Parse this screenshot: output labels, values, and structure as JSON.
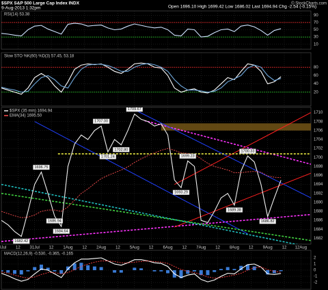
{
  "header": {
    "title": "$SPX S&P 500 Large Cap Index INDX",
    "date": "9-Aug-2013 1:32pm",
    "quote": "Open 1696.10  High 1699.42  Low 1686.02  Last 1694.94  Chg -2.54 (-0.15%)",
    "credit": "© StockCharts.com"
  },
  "chart_data": [
    {
      "type": "line",
      "title": "RSI(14) 53.38",
      "x": [
        0,
        0.2,
        0.4,
        0.6,
        0.8,
        1,
        1.2,
        1.4,
        1.6,
        1.8,
        2,
        2.2,
        2.4,
        2.6,
        2.8,
        3,
        3.2,
        3.4,
        3.6,
        3.8,
        4,
        4.2,
        4.4,
        4.6,
        4.8,
        5,
        5.2,
        5.4,
        5.6,
        5.8,
        6,
        6.2,
        6.4,
        6.6,
        6.8,
        7,
        7.2,
        7.4,
        7.6,
        7.8,
        8,
        8.2,
        8.4
      ],
      "xlim": [
        0,
        9.3
      ],
      "ylim": [
        0,
        100
      ],
      "yticks": [
        10,
        30,
        50,
        70,
        90
      ],
      "grid": true,
      "levels": [
        {
          "value": 70,
          "color": "#ff3030"
        },
        {
          "value": 30,
          "color": "#30d030"
        }
      ],
      "series": [
        {
          "color": "#cfe3ff",
          "values": [
            40,
            38,
            35,
            33,
            50,
            60,
            62,
            52,
            45,
            38,
            65,
            68,
            66,
            60,
            62,
            63,
            55,
            50,
            52,
            60,
            66,
            62,
            58,
            55,
            57,
            50,
            35,
            33,
            52,
            50,
            30,
            32,
            42,
            50,
            52,
            45,
            60,
            63,
            58,
            48,
            35,
            48,
            53
          ]
        }
      ]
    },
    {
      "type": "line",
      "title": "Slow STO %K(60) %D(3) 57.45, 53.18",
      "x": [
        0,
        0.2,
        0.4,
        0.6,
        0.8,
        1,
        1.2,
        1.4,
        1.6,
        1.8,
        2,
        2.2,
        2.4,
        2.6,
        2.8,
        3,
        3.2,
        3.4,
        3.6,
        3.8,
        4,
        4.2,
        4.4,
        4.6,
        4.8,
        5,
        5.2,
        5.4,
        5.6,
        5.8,
        6,
        6.2,
        6.4,
        6.6,
        6.8,
        7,
        7.2,
        7.4,
        7.6,
        7.8,
        8,
        8.2,
        8.4
      ],
      "xlim": [
        0,
        9.3
      ],
      "ylim": [
        -10,
        110
      ],
      "yticks": [
        20,
        40,
        60,
        80
      ],
      "grid": true,
      "levels": [
        {
          "value": 80,
          "color": "#ff3030"
        },
        {
          "value": 20,
          "color": "#30d030"
        }
      ],
      "series": [
        {
          "color": "#ffffff",
          "values": [
            30,
            25,
            20,
            15,
            30,
            55,
            65,
            55,
            35,
            20,
            45,
            75,
            85,
            88,
            86,
            88,
            80,
            70,
            65,
            75,
            88,
            90,
            88,
            80,
            78,
            60,
            30,
            20,
            25,
            28,
            20,
            18,
            25,
            40,
            55,
            50,
            70,
            88,
            85,
            70,
            40,
            45,
            57
          ]
        },
        {
          "color": "#6fa8dc",
          "values": [
            32,
            28,
            25,
            20,
            22,
            40,
            55,
            60,
            50,
            35,
            30,
            55,
            75,
            85,
            87,
            87,
            84,
            78,
            70,
            70,
            80,
            86,
            89,
            86,
            80,
            70,
            50,
            35,
            25,
            25,
            23,
            20,
            22,
            30,
            45,
            52,
            60,
            78,
            85,
            80,
            60,
            48,
            53
          ]
        }
      ]
    },
    {
      "type": "line",
      "x": [
        0,
        0.2,
        0.4,
        0.6,
        0.8,
        1,
        1.2,
        1.4,
        1.6,
        1.8,
        2,
        2.2,
        2.4,
        2.6,
        2.8,
        3,
        3.2,
        3.4,
        3.6,
        3.8,
        4,
        4.2,
        4.4,
        4.6,
        4.8,
        5,
        5.2,
        5.4,
        5.6,
        5.8,
        6,
        6.2,
        6.4,
        6.6,
        6.8,
        7,
        7.2,
        7.4,
        7.6,
        7.8,
        8,
        8.2,
        8.4
      ],
      "xlim": [
        0,
        9.3
      ],
      "ylim": [
        1681,
        1711
      ],
      "yticks": [
        1682,
        1684,
        1686,
        1688,
        1690,
        1692,
        1694,
        1696,
        1698,
        1700,
        1702,
        1704,
        1706,
        1708,
        1710
      ],
      "grid": true,
      "xticks": [
        {
          "value": 0,
          "label": "30Jul"
        },
        {
          "value": 0.5,
          "label": "12"
        },
        {
          "value": 1,
          "label": "31Jul"
        },
        {
          "value": 1.5,
          "label": "12"
        },
        {
          "value": 2,
          "label": "1Aug"
        },
        {
          "value": 2.5,
          "label": "12"
        },
        {
          "value": 3,
          "label": "2Aug"
        },
        {
          "value": 3.5,
          "label": "12"
        },
        {
          "value": 4,
          "label": "5Aug"
        },
        {
          "value": 4.5,
          "label": "12"
        },
        {
          "value": 5,
          "label": "6Aug"
        },
        {
          "value": 5.5,
          "label": "12"
        },
        {
          "value": 6,
          "label": "7Aug"
        },
        {
          "value": 6.5,
          "label": "12"
        },
        {
          "value": 7,
          "label": "8Aug"
        },
        {
          "value": 7.5,
          "label": "12"
        },
        {
          "value": 8,
          "label": "9Aug"
        },
        {
          "value": 8.5,
          "label": "12"
        },
        {
          "value": 9,
          "label": "12Aug"
        }
      ],
      "zones": [
        {
          "x": [
            4.8,
            9.3
          ],
          "y": [
            1706,
            1707.6
          ],
          "color": "#7a5a18"
        }
      ],
      "trendlines": [
        {
          "x": [
            4.3,
            9.3
          ],
          "y": [
            1708.2,
            1698.5
          ],
          "color": "#ff33ff",
          "dash": true
        },
        {
          "x": [
            0,
            9.3
          ],
          "y": [
            1681.3,
            1687.3
          ],
          "color": "#ff33ff",
          "dash": true
        },
        {
          "x": [
            3.9,
            9.3
          ],
          "y": [
            1711,
            1691
          ],
          "color": "#2040ff",
          "dash": false
        },
        {
          "x": [
            1,
            7.4
          ],
          "y": [
            1708,
            1683
          ],
          "color": "#2040ff",
          "dash": false
        },
        {
          "x": [
            5.2,
            9.3
          ],
          "y": [
            1694,
            1710
          ],
          "color": "#ff2020",
          "dash": false
        },
        {
          "x": [
            5.2,
            9.3
          ],
          "y": [
            1684.5,
            1696.5
          ],
          "color": "#ff2020",
          "dash": false
        },
        {
          "x": [
            0,
            9.3
          ],
          "y": [
            1694,
            1680
          ],
          "color": "#20c0c0",
          "dash": true
        },
        {
          "x": [
            0,
            9.3
          ],
          "y": [
            1692,
            1681.5
          ],
          "color": "#40d040",
          "dash": true
        },
        {
          "x": [
            1.7,
            9.3
          ],
          "y": [
            1700.8,
            1700.8
          ],
          "color": "#e8e840",
          "dash": true
        }
      ],
      "annotations": [
        {
          "x": 0.6,
          "y": 1682.42,
          "label": "1682.42",
          "position": "below"
        },
        {
          "x": 1.2,
          "y": 1696.75,
          "label": "1696.75",
          "position": "above"
        },
        {
          "x": 1.6,
          "y": 1686.94,
          "label": "1686.94",
          "position": "below"
        },
        {
          "x": 1.8,
          "y": 1684.64,
          "label": "1684.64",
          "position": "below"
        },
        {
          "x": 3,
          "y": 1707,
          "label": "1707.00",
          "position": "above"
        },
        {
          "x": 3.2,
          "y": 1701.24,
          "label": "1701.24",
          "position": "below"
        },
        {
          "x": 3.6,
          "y": 1702.8,
          "label": "1702.80",
          "position": "below"
        },
        {
          "x": 4,
          "y": 1709.67,
          "label": "1709.67",
          "position": "above"
        },
        {
          "x": 5.4,
          "y": 1693.29,
          "label": "1693.29",
          "position": "below"
        },
        {
          "x": 5.6,
          "y": 1699.23,
          "label": "1699.23",
          "position": "above"
        },
        {
          "x": 7,
          "y": 1689.38,
          "label": "1689.38",
          "position": "below"
        },
        {
          "x": 7.4,
          "y": 1700.33,
          "label": "1700.33",
          "position": "above"
        },
        {
          "x": 8,
          "y": 1686.82,
          "label": "1686.82",
          "position": "below"
        }
      ],
      "series": [
        {
          "name": "$SPX (35 min) 1694.94",
          "color": "#f0f0f0",
          "values": [
            1686,
            1685,
            1683.5,
            1682.42,
            1688,
            1694,
            1696.75,
            1692,
            1686.94,
            1684.64,
            1698,
            1703,
            1705,
            1704,
            1706,
            1707,
            1701.24,
            1704,
            1702.8,
            1706,
            1709.67,
            1708.5,
            1708,
            1707,
            1707.5,
            1705,
            1695,
            1693.29,
            1699.23,
            1698,
            1686,
            1685.5,
            1688,
            1691,
            1692,
            1689.38,
            1697,
            1700.33,
            1699,
            1694,
            1686.82,
            1691,
            1694.94
          ]
        },
        {
          "name": "EMA(34) 1695.50",
          "color": "#ff5050",
          "dash": true,
          "values": [
            1688,
            1687.5,
            1687,
            1686.6,
            1686.7,
            1687.2,
            1688,
            1688.3,
            1688.3,
            1688,
            1689,
            1690.5,
            1692,
            1693,
            1694.2,
            1695.3,
            1696,
            1696.6,
            1697.2,
            1697.9,
            1698.9,
            1699.7,
            1700.4,
            1701,
            1701.6,
            1702,
            1701.6,
            1701,
            1700.9,
            1700.7,
            1699.7,
            1698.7,
            1698,
            1697.6,
            1697.2,
            1696.6,
            1696.6,
            1696.8,
            1696.9,
            1696.7,
            1695.9,
            1695.6,
            1695.5
          ]
        }
      ]
    },
    {
      "type": "line",
      "title": "MACD(12,26,9) -0.530, -0.365, -0.165",
      "x": [
        0,
        0.2,
        0.4,
        0.6,
        0.8,
        1,
        1.2,
        1.4,
        1.6,
        1.8,
        2,
        2.2,
        2.4,
        2.6,
        2.8,
        3,
        3.2,
        3.4,
        3.6,
        3.8,
        4,
        4.2,
        4.4,
        4.6,
        4.8,
        5,
        5.2,
        5.4,
        5.6,
        5.8,
        6,
        6.2,
        6.4,
        6.6,
        6.8,
        7,
        7.2,
        7.4,
        7.6,
        7.8,
        8,
        8.2,
        8.4
      ],
      "xlim": [
        0,
        9.3
      ],
      "ylim": [
        -3,
        3
      ],
      "yticks": [
        -2,
        -1,
        0,
        1,
        2
      ],
      "grid": true,
      "series": [
        {
          "kind": "histogram",
          "color": "#3a7bd5",
          "values": [
            -0.2,
            -0.4,
            -0.6,
            -0.7,
            -0.2,
            0.5,
            0.9,
            0.4,
            -0.2,
            -0.6,
            0.6,
            1.1,
            1.2,
            0.8,
            0.6,
            0.5,
            0,
            -0.4,
            -0.4,
            0,
            0.4,
            0.3,
            0,
            -0.2,
            -0.2,
            -0.5,
            -1.2,
            -1.3,
            -0.6,
            -0.2,
            -0.8,
            -0.8,
            -0.3,
            0.2,
            0.5,
            0.2,
            0.7,
            0.9,
            0.6,
            0,
            -0.7,
            -0.5,
            -0.16
          ]
        },
        {
          "color": "#ffffff",
          "values": [
            -0.5,
            -0.9,
            -1.4,
            -1.8,
            -1.5,
            -0.6,
            0.2,
            0,
            -0.6,
            -1.2,
            0.2,
            1.2,
            1.8,
            1.8,
            1.9,
            2,
            1.5,
            1,
            0.8,
            1.2,
            1.7,
            1.7,
            1.5,
            1.2,
            1.1,
            0.6,
            -0.6,
            -1.2,
            -0.8,
            -0.6,
            -1.5,
            -1.9,
            -1.6,
            -1,
            -0.5,
            -0.6,
            0.2,
            0.9,
            1,
            0.5,
            -0.6,
            -0.7,
            -0.53
          ]
        },
        {
          "color": "#ff4040",
          "dash": true,
          "values": [
            -0.3,
            -0.5,
            -0.8,
            -1.1,
            -1.3,
            -1.1,
            -0.7,
            -0.4,
            -0.4,
            -0.6,
            -0.4,
            0.1,
            0.6,
            1,
            1.3,
            1.5,
            1.5,
            1.4,
            1.2,
            1.2,
            1.3,
            1.4,
            1.5,
            1.4,
            1.3,
            1.1,
            0.6,
            0.1,
            -0.2,
            -0.4,
            -0.7,
            -1.1,
            -1.3,
            -1.2,
            -1,
            -0.8,
            -0.5,
            0,
            0.4,
            0.5,
            0.1,
            -0.2,
            -0.37
          ]
        }
      ]
    }
  ]
}
